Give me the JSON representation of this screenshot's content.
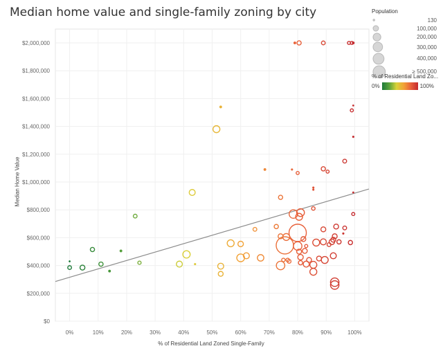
{
  "title": "Median home value and single-family zoning by city",
  "chart_data": {
    "type": "scatter",
    "title": "Median home value and single-family zoning by city",
    "xlabel": "% of Residential Land Zoned Single-Family",
    "ylabel": "Median Home Value",
    "x_ticks": [
      "0%",
      "10%",
      "20%",
      "30%",
      "40%",
      "50%",
      "60%",
      "70%",
      "80%",
      "90%",
      "100%"
    ],
    "y_ticks": [
      "$0",
      "$200,000",
      "$400,000",
      "$600,000",
      "$800,000",
      "$1,000,000",
      "$1,200,000",
      "$1,400,000",
      "$1,600,000",
      "$1,800,000",
      "$2,000,000"
    ],
    "xlim": [
      -5,
      105
    ],
    "ylim": [
      0,
      2000000
    ],
    "grid": true,
    "trend_line": {
      "x": [
        -5,
        105
      ],
      "y": [
        285000,
        950000
      ]
    },
    "points": [
      {
        "x": 0,
        "y": 430000,
        "size": 130,
        "pct": 0
      },
      {
        "x": 0,
        "y": 385000,
        "size": 12000,
        "pct": 0
      },
      {
        "x": 4.5,
        "y": 385000,
        "size": 20000,
        "pct": 4
      },
      {
        "x": 8,
        "y": 515000,
        "size": 15000,
        "pct": 8
      },
      {
        "x": 11,
        "y": 410000,
        "size": 15000,
        "pct": 11
      },
      {
        "x": 14,
        "y": 360000,
        "size": 5000,
        "pct": 14
      },
      {
        "x": 18,
        "y": 505000,
        "size": 5000,
        "pct": 18
      },
      {
        "x": 23,
        "y": 755000,
        "size": 12000,
        "pct": 23
      },
      {
        "x": 24.5,
        "y": 420000,
        "size": 9000,
        "pct": 25
      },
      {
        "x": 38.5,
        "y": 410000,
        "size": 30000,
        "pct": 38
      },
      {
        "x": 41,
        "y": 480000,
        "size": 45000,
        "pct": 41
      },
      {
        "x": 43,
        "y": 925000,
        "size": 30000,
        "pct": 43
      },
      {
        "x": 44,
        "y": 410000,
        "size": 3000,
        "pct": 44
      },
      {
        "x": 51.5,
        "y": 1380000,
        "size": 40000,
        "pct": 51
      },
      {
        "x": 53,
        "y": 1540000,
        "size": 5000,
        "pct": 53
      },
      {
        "x": 53,
        "y": 395000,
        "size": 30000,
        "pct": 53
      },
      {
        "x": 53,
        "y": 340000,
        "size": 20000,
        "pct": 53
      },
      {
        "x": 56.5,
        "y": 560000,
        "size": 40000,
        "pct": 56
      },
      {
        "x": 60,
        "y": 555000,
        "size": 25000,
        "pct": 60
      },
      {
        "x": 60,
        "y": 455000,
        "size": 50000,
        "pct": 60
      },
      {
        "x": 62,
        "y": 470000,
        "size": 30000,
        "pct": 62
      },
      {
        "x": 65,
        "y": 660000,
        "size": 12000,
        "pct": 65
      },
      {
        "x": 67,
        "y": 455000,
        "size": 35000,
        "pct": 67
      },
      {
        "x": 68.5,
        "y": 1090000,
        "size": 5000,
        "pct": 68
      },
      {
        "x": 72.5,
        "y": 680000,
        "size": 15000,
        "pct": 72
      },
      {
        "x": 74,
        "y": 890000,
        "size": 15000,
        "pct": 74
      },
      {
        "x": 74,
        "y": 610000,
        "size": 20000,
        "pct": 74
      },
      {
        "x": 74,
        "y": 400000,
        "size": 60000,
        "pct": 74
      },
      {
        "x": 75,
        "y": 440000,
        "size": 10000,
        "pct": 75
      },
      {
        "x": 75.5,
        "y": 545000,
        "size": 250000,
        "pct": 75
      },
      {
        "x": 76,
        "y": 605000,
        "size": 40000,
        "pct": 76
      },
      {
        "x": 76.5,
        "y": 440000,
        "size": 10000,
        "pct": 76
      },
      {
        "x": 77,
        "y": 430000,
        "size": 12000,
        "pct": 77
      },
      {
        "x": 78,
        "y": 1090000,
        "size": 3000,
        "pct": 78
      },
      {
        "x": 78.5,
        "y": 770000,
        "size": 60000,
        "pct": 78
      },
      {
        "x": 79,
        "y": 2000000,
        "size": 5000,
        "pct": 79
      },
      {
        "x": 80,
        "y": 540000,
        "size": 60000,
        "pct": 80
      },
      {
        "x": 80,
        "y": 1065000,
        "size": 8000,
        "pct": 80
      },
      {
        "x": 80.5,
        "y": 750000,
        "size": 40000,
        "pct": 80
      },
      {
        "x": 80.5,
        "y": 2000000,
        "size": 15000,
        "pct": 80
      },
      {
        "x": 81,
        "y": 780000,
        "size": 50000,
        "pct": 81
      },
      {
        "x": 80,
        "y": 635000,
        "size": 250000,
        "pct": 80
      },
      {
        "x": 80.5,
        "y": 500000,
        "size": 20000,
        "pct": 80
      },
      {
        "x": 81,
        "y": 460000,
        "size": 25000,
        "pct": 81
      },
      {
        "x": 81,
        "y": 420000,
        "size": 15000,
        "pct": 81
      },
      {
        "x": 82,
        "y": 590000,
        "size": 20000,
        "pct": 82
      },
      {
        "x": 82.5,
        "y": 505000,
        "size": 20000,
        "pct": 82
      },
      {
        "x": 83,
        "y": 410000,
        "size": 30000,
        "pct": 83
      },
      {
        "x": 83,
        "y": 540000,
        "size": 8000,
        "pct": 83
      },
      {
        "x": 84,
        "y": 440000,
        "size": 20000,
        "pct": 84
      },
      {
        "x": 85.5,
        "y": 960000,
        "size": 3000,
        "pct": 85
      },
      {
        "x": 85.5,
        "y": 945000,
        "size": 3000,
        "pct": 85
      },
      {
        "x": 85.5,
        "y": 810000,
        "size": 10000,
        "pct": 85
      },
      {
        "x": 85.5,
        "y": 405000,
        "size": 40000,
        "pct": 86
      },
      {
        "x": 85.5,
        "y": 355000,
        "size": 40000,
        "pct": 86
      },
      {
        "x": 86.5,
        "y": 565000,
        "size": 40000,
        "pct": 87
      },
      {
        "x": 87.5,
        "y": 450000,
        "size": 20000,
        "pct": 88
      },
      {
        "x": 89,
        "y": 1095000,
        "size": 15000,
        "pct": 89
      },
      {
        "x": 89,
        "y": 660000,
        "size": 20000,
        "pct": 89
      },
      {
        "x": 89,
        "y": 570000,
        "size": 30000,
        "pct": 89
      },
      {
        "x": 89,
        "y": 2000000,
        "size": 12000,
        "pct": 89
      },
      {
        "x": 89.5,
        "y": 440000,
        "size": 40000,
        "pct": 90
      },
      {
        "x": 90.5,
        "y": 1075000,
        "size": 8000,
        "pct": 90
      },
      {
        "x": 91,
        "y": 550000,
        "size": 12000,
        "pct": 91
      },
      {
        "x": 92,
        "y": 570000,
        "size": 25000,
        "pct": 92
      },
      {
        "x": 92.5,
        "y": 585000,
        "size": 20000,
        "pct": 93
      },
      {
        "x": 92.5,
        "y": 470000,
        "size": 30000,
        "pct": 93
      },
      {
        "x": 93,
        "y": 610000,
        "size": 20000,
        "pct": 93
      },
      {
        "x": 93,
        "y": 280000,
        "size": 60000,
        "pct": 93
      },
      {
        "x": 93,
        "y": 260000,
        "size": 60000,
        "pct": 93
      },
      {
        "x": 93.5,
        "y": 680000,
        "size": 20000,
        "pct": 94
      },
      {
        "x": 94.5,
        "y": 570000,
        "size": 15000,
        "pct": 95
      },
      {
        "x": 96,
        "y": 630000,
        "size": 3000,
        "pct": 96
      },
      {
        "x": 96.5,
        "y": 1150000,
        "size": 12000,
        "pct": 96
      },
      {
        "x": 96.5,
        "y": 670000,
        "size": 12000,
        "pct": 97
      },
      {
        "x": 98,
        "y": 2000000,
        "size": 8000,
        "pct": 98
      },
      {
        "x": 99,
        "y": 2000000,
        "size": 8000,
        "pct": 99
      },
      {
        "x": 98.5,
        "y": 565000,
        "size": 15000,
        "pct": 98
      },
      {
        "x": 99.5,
        "y": 1550000,
        "size": 130,
        "pct": 99
      },
      {
        "x": 99,
        "y": 1515000,
        "size": 8000,
        "pct": 99
      },
      {
        "x": 99.5,
        "y": 1325000,
        "size": 3000,
        "pct": 100
      },
      {
        "x": 99.5,
        "y": 925000,
        "size": 1000,
        "pct": 100
      },
      {
        "x": 99.5,
        "y": 770000,
        "size": 8000,
        "pct": 100
      },
      {
        "x": 99.5,
        "y": 2000000,
        "size": 5000,
        "pct": 100
      }
    ]
  },
  "legend_size": {
    "title": "Population",
    "items": [
      {
        "label": "130",
        "value": 130
      },
      {
        "label": "100,000",
        "value": 100000
      },
      {
        "label": "200,000",
        "value": 200000
      },
      {
        "label": "300,000",
        "value": 300000
      },
      {
        "label": "400,000",
        "value": 400000
      },
      {
        "label": "≥ 500,000",
        "value": 500000
      }
    ]
  },
  "legend_color": {
    "title": "% of Residential Land Zo...",
    "min_label": "0%",
    "max_label": "100%",
    "colors": [
      "#1e7a3a",
      "#5aa33b",
      "#d9d23a",
      "#f2a338",
      "#e8603a",
      "#c42a2e"
    ]
  }
}
